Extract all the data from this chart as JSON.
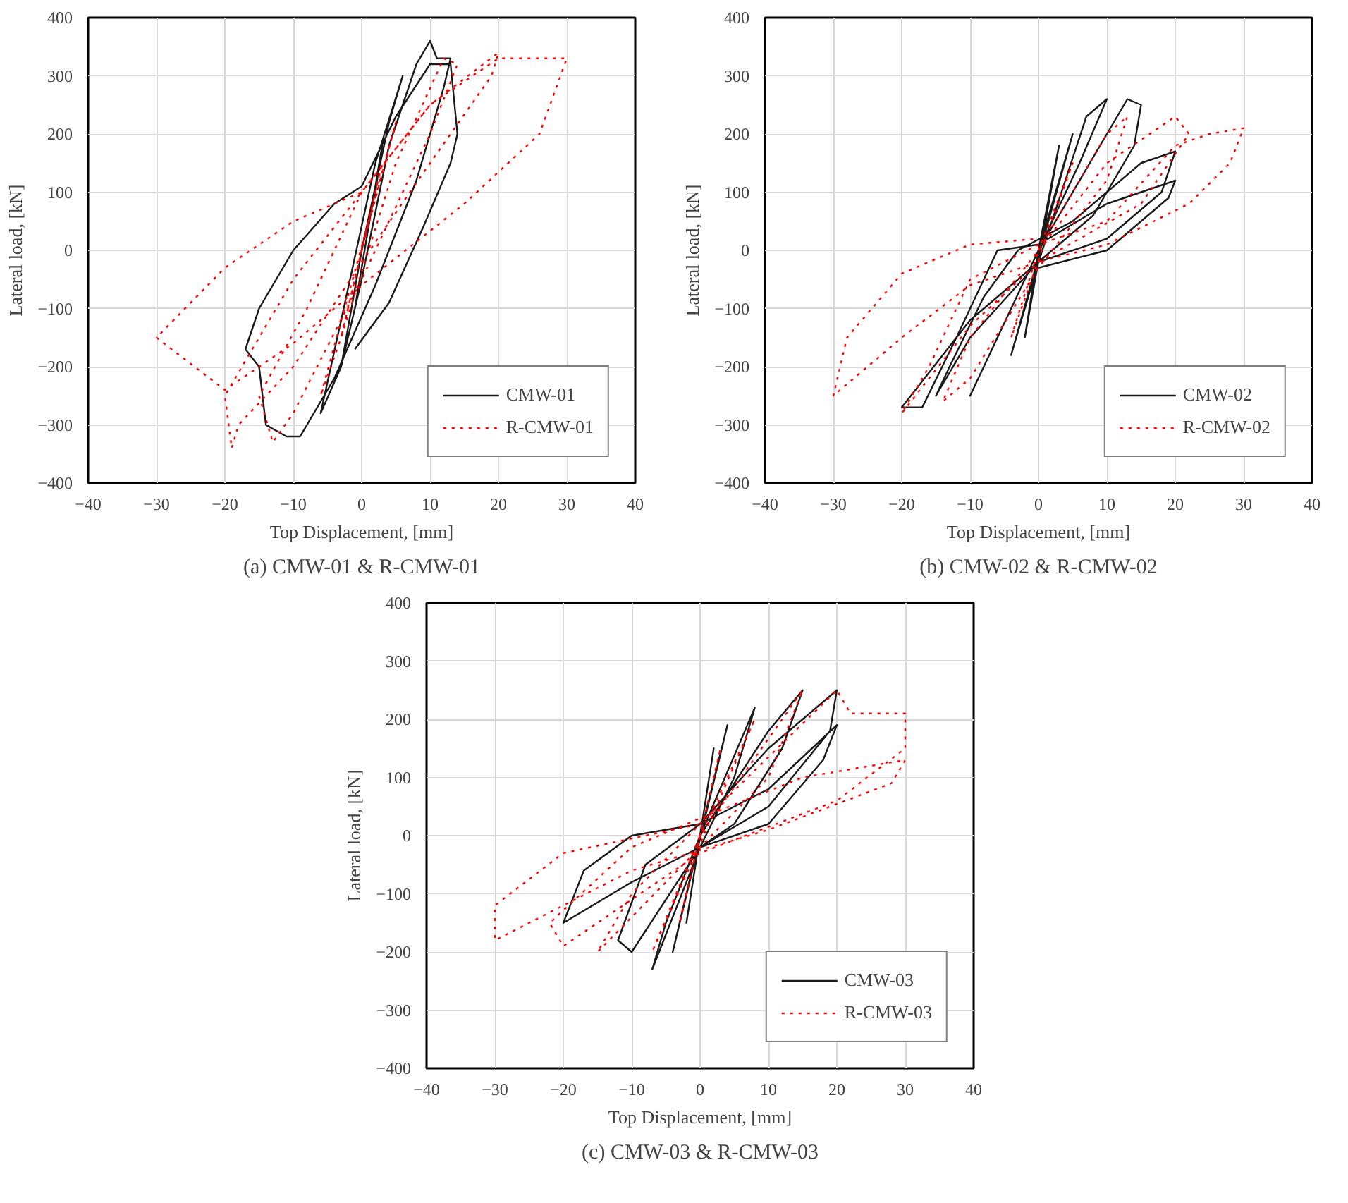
{
  "chart_data": [
    {
      "type": "line",
      "xlabel": "Top Displacement, [mm]",
      "ylabel": "Lateral load, [kN]",
      "xlim": [
        -40,
        40
      ],
      "ylim": [
        -400,
        400
      ],
      "xticks": [
        -40,
        -30,
        -20,
        -10,
        0,
        10,
        20,
        30,
        40
      ],
      "yticks": [
        -400,
        -300,
        -200,
        -100,
        0,
        100,
        200,
        300,
        400
      ],
      "grid": true,
      "legend": "bottom right",
      "annotations": [
        "(a) CMW-01 & R-CMW-01"
      ],
      "series": [
        {
          "name": "CMW-01",
          "color": "#1a1a1a",
          "line_style": "solid",
          "x": [
            0,
            2,
            3,
            -1,
            -3,
            0,
            4,
            6,
            2,
            -3,
            -6,
            -3,
            0,
            4,
            8,
            10,
            11,
            13,
            12,
            8,
            2,
            -4,
            -9,
            -11,
            -14,
            -15,
            -17,
            -15,
            -10,
            -4,
            0,
            5,
            10,
            13,
            14,
            13,
            9,
            4,
            -1
          ],
          "values": [
            0,
            100,
            180,
            -100,
            -200,
            0,
            220,
            300,
            150,
            -120,
            -280,
            -200,
            -50,
            180,
            320,
            360,
            330,
            330,
            280,
            120,
            -60,
            -220,
            -320,
            -320,
            -300,
            -200,
            -170,
            -100,
            0,
            80,
            110,
            230,
            320,
            320,
            200,
            150,
            40,
            -90,
            -170
          ]
        },
        {
          "name": "R-CMW-01",
          "color": "#ff0000",
          "line_style": "dotted",
          "x": [
            0,
            3,
            -3,
            0,
            5,
            -6,
            -3,
            5,
            12,
            14,
            10,
            0,
            -10,
            -13,
            -15,
            -8,
            0,
            10,
            20,
            19,
            10,
            0,
            -10,
            -18,
            -19,
            -20,
            -10,
            0,
            10,
            20,
            30,
            26,
            15,
            0,
            -10,
            -20,
            -30,
            -20,
            -10,
            0
          ],
          "values": [
            0,
            150,
            -150,
            0,
            220,
            -250,
            -150,
            150,
            330,
            320,
            200,
            -50,
            -280,
            -330,
            -250,
            -100,
            100,
            250,
            340,
            300,
            150,
            -20,
            -200,
            -300,
            -340,
            -250,
            -50,
            100,
            250,
            330,
            330,
            200,
            80,
            -60,
            -160,
            -240,
            -150,
            -30,
            50,
            100
          ]
        }
      ]
    },
    {
      "type": "line",
      "xlabel": "Top Displacement, [mm]",
      "ylabel": "Lateral load, [kN]",
      "xlim": [
        -40,
        40
      ],
      "ylim": [
        -400,
        400
      ],
      "xticks": [
        -40,
        -30,
        -20,
        -10,
        0,
        10,
        20,
        30,
        40
      ],
      "yticks": [
        -400,
        -300,
        -200,
        -100,
        0,
        100,
        200,
        300,
        400
      ],
      "grid": true,
      "legend": "bottom right",
      "annotations": [
        "(b) CMW-02 & R-CMW-02"
      ],
      "series": [
        {
          "name": "CMW-02",
          "color": "#1a1a1a",
          "line_style": "solid",
          "x": [
            0,
            3,
            -2,
            0,
            5,
            -4,
            0,
            7,
            10,
            6,
            0,
            -8,
            -10,
            -6,
            0,
            10,
            13,
            15,
            14,
            8,
            0,
            -10,
            -15,
            -13,
            -8,
            -3,
            5,
            15,
            20,
            18,
            10,
            0,
            -10,
            -20,
            -17,
            -12,
            -6,
            0,
            10,
            20,
            19,
            10,
            0
          ],
          "values": [
            0,
            180,
            -150,
            0,
            200,
            -180,
            -20,
            230,
            260,
            150,
            0,
            -200,
            -250,
            -150,
            0,
            200,
            260,
            250,
            180,
            60,
            -20,
            -150,
            -250,
            -200,
            -80,
            0,
            50,
            150,
            170,
            100,
            20,
            -20,
            -120,
            -270,
            -270,
            -150,
            0,
            10,
            80,
            120,
            90,
            0,
            -30
          ]
        },
        {
          "name": "R-CMW-02",
          "color": "#ff0000",
          "line_style": "dotted",
          "x": [
            0,
            5,
            -4,
            0,
            10,
            13,
            10,
            0,
            -10,
            -14,
            -10,
            0,
            10,
            20,
            22,
            15,
            0,
            -10,
            -20,
            -16,
            -10,
            0,
            10,
            20,
            25,
            30,
            28,
            22,
            10,
            0,
            -10,
            -20,
            -30,
            -28,
            -20,
            -10,
            0
          ],
          "values": [
            0,
            150,
            -150,
            0,
            200,
            230,
            120,
            -30,
            -220,
            -260,
            -150,
            0,
            150,
            230,
            200,
            80,
            -20,
            -130,
            -280,
            -200,
            -50,
            10,
            50,
            180,
            200,
            210,
            150,
            80,
            10,
            -20,
            -60,
            -150,
            -250,
            -150,
            -40,
            10,
            20
          ]
        }
      ]
    },
    {
      "type": "line",
      "xlabel": "Top Displacement, [mm]",
      "ylabel": "Lateral load, [kN]",
      "xlim": [
        -40,
        40
      ],
      "ylim": [
        -400,
        400
      ],
      "xticks": [
        -40,
        -30,
        -20,
        -10,
        0,
        10,
        20,
        30,
        40
      ],
      "yticks": [
        -400,
        -300,
        -200,
        -100,
        0,
        100,
        200,
        300,
        400
      ],
      "grid": true,
      "legend": "bottom right",
      "annotations": [
        "(c) CMW-03 & R-CMW-03"
      ],
      "series": [
        {
          "name": "CMW-03",
          "color": "#1a1a1a",
          "line_style": "solid",
          "x": [
            0,
            2,
            -2,
            0,
            4,
            -4,
            0,
            8,
            5,
            0,
            -7,
            -5,
            0,
            10,
            15,
            12,
            5,
            0,
            -10,
            -12,
            -8,
            0,
            10,
            20,
            19,
            10,
            0,
            -10,
            -20,
            -17,
            -10,
            0,
            10,
            20,
            18,
            10,
            0
          ],
          "values": [
            0,
            150,
            -150,
            0,
            190,
            -200,
            0,
            220,
            100,
            -20,
            -230,
            -150,
            0,
            180,
            250,
            150,
            20,
            -20,
            -200,
            -180,
            -50,
            20,
            150,
            250,
            180,
            50,
            -20,
            -80,
            -150,
            -60,
            0,
            20,
            80,
            190,
            130,
            20,
            -20
          ]
        },
        {
          "name": "R-CMW-03",
          "color": "#ff0000",
          "line_style": "dotted",
          "x": [
            0,
            3,
            -3,
            0,
            8,
            -7,
            0,
            15,
            10,
            0,
            -15,
            -10,
            0,
            20,
            22,
            30,
            30,
            20,
            0,
            -20,
            -22,
            -10,
            0,
            15,
            30,
            28,
            10,
            -10,
            -30,
            -30,
            -20,
            0
          ],
          "values": [
            0,
            150,
            -150,
            0,
            200,
            -200,
            0,
            250,
            100,
            -20,
            -200,
            -100,
            20,
            250,
            210,
            210,
            150,
            60,
            -30,
            -190,
            -150,
            -20,
            30,
            100,
            130,
            90,
            10,
            -60,
            -180,
            -120,
            -30,
            20
          ]
        }
      ]
    }
  ]
}
